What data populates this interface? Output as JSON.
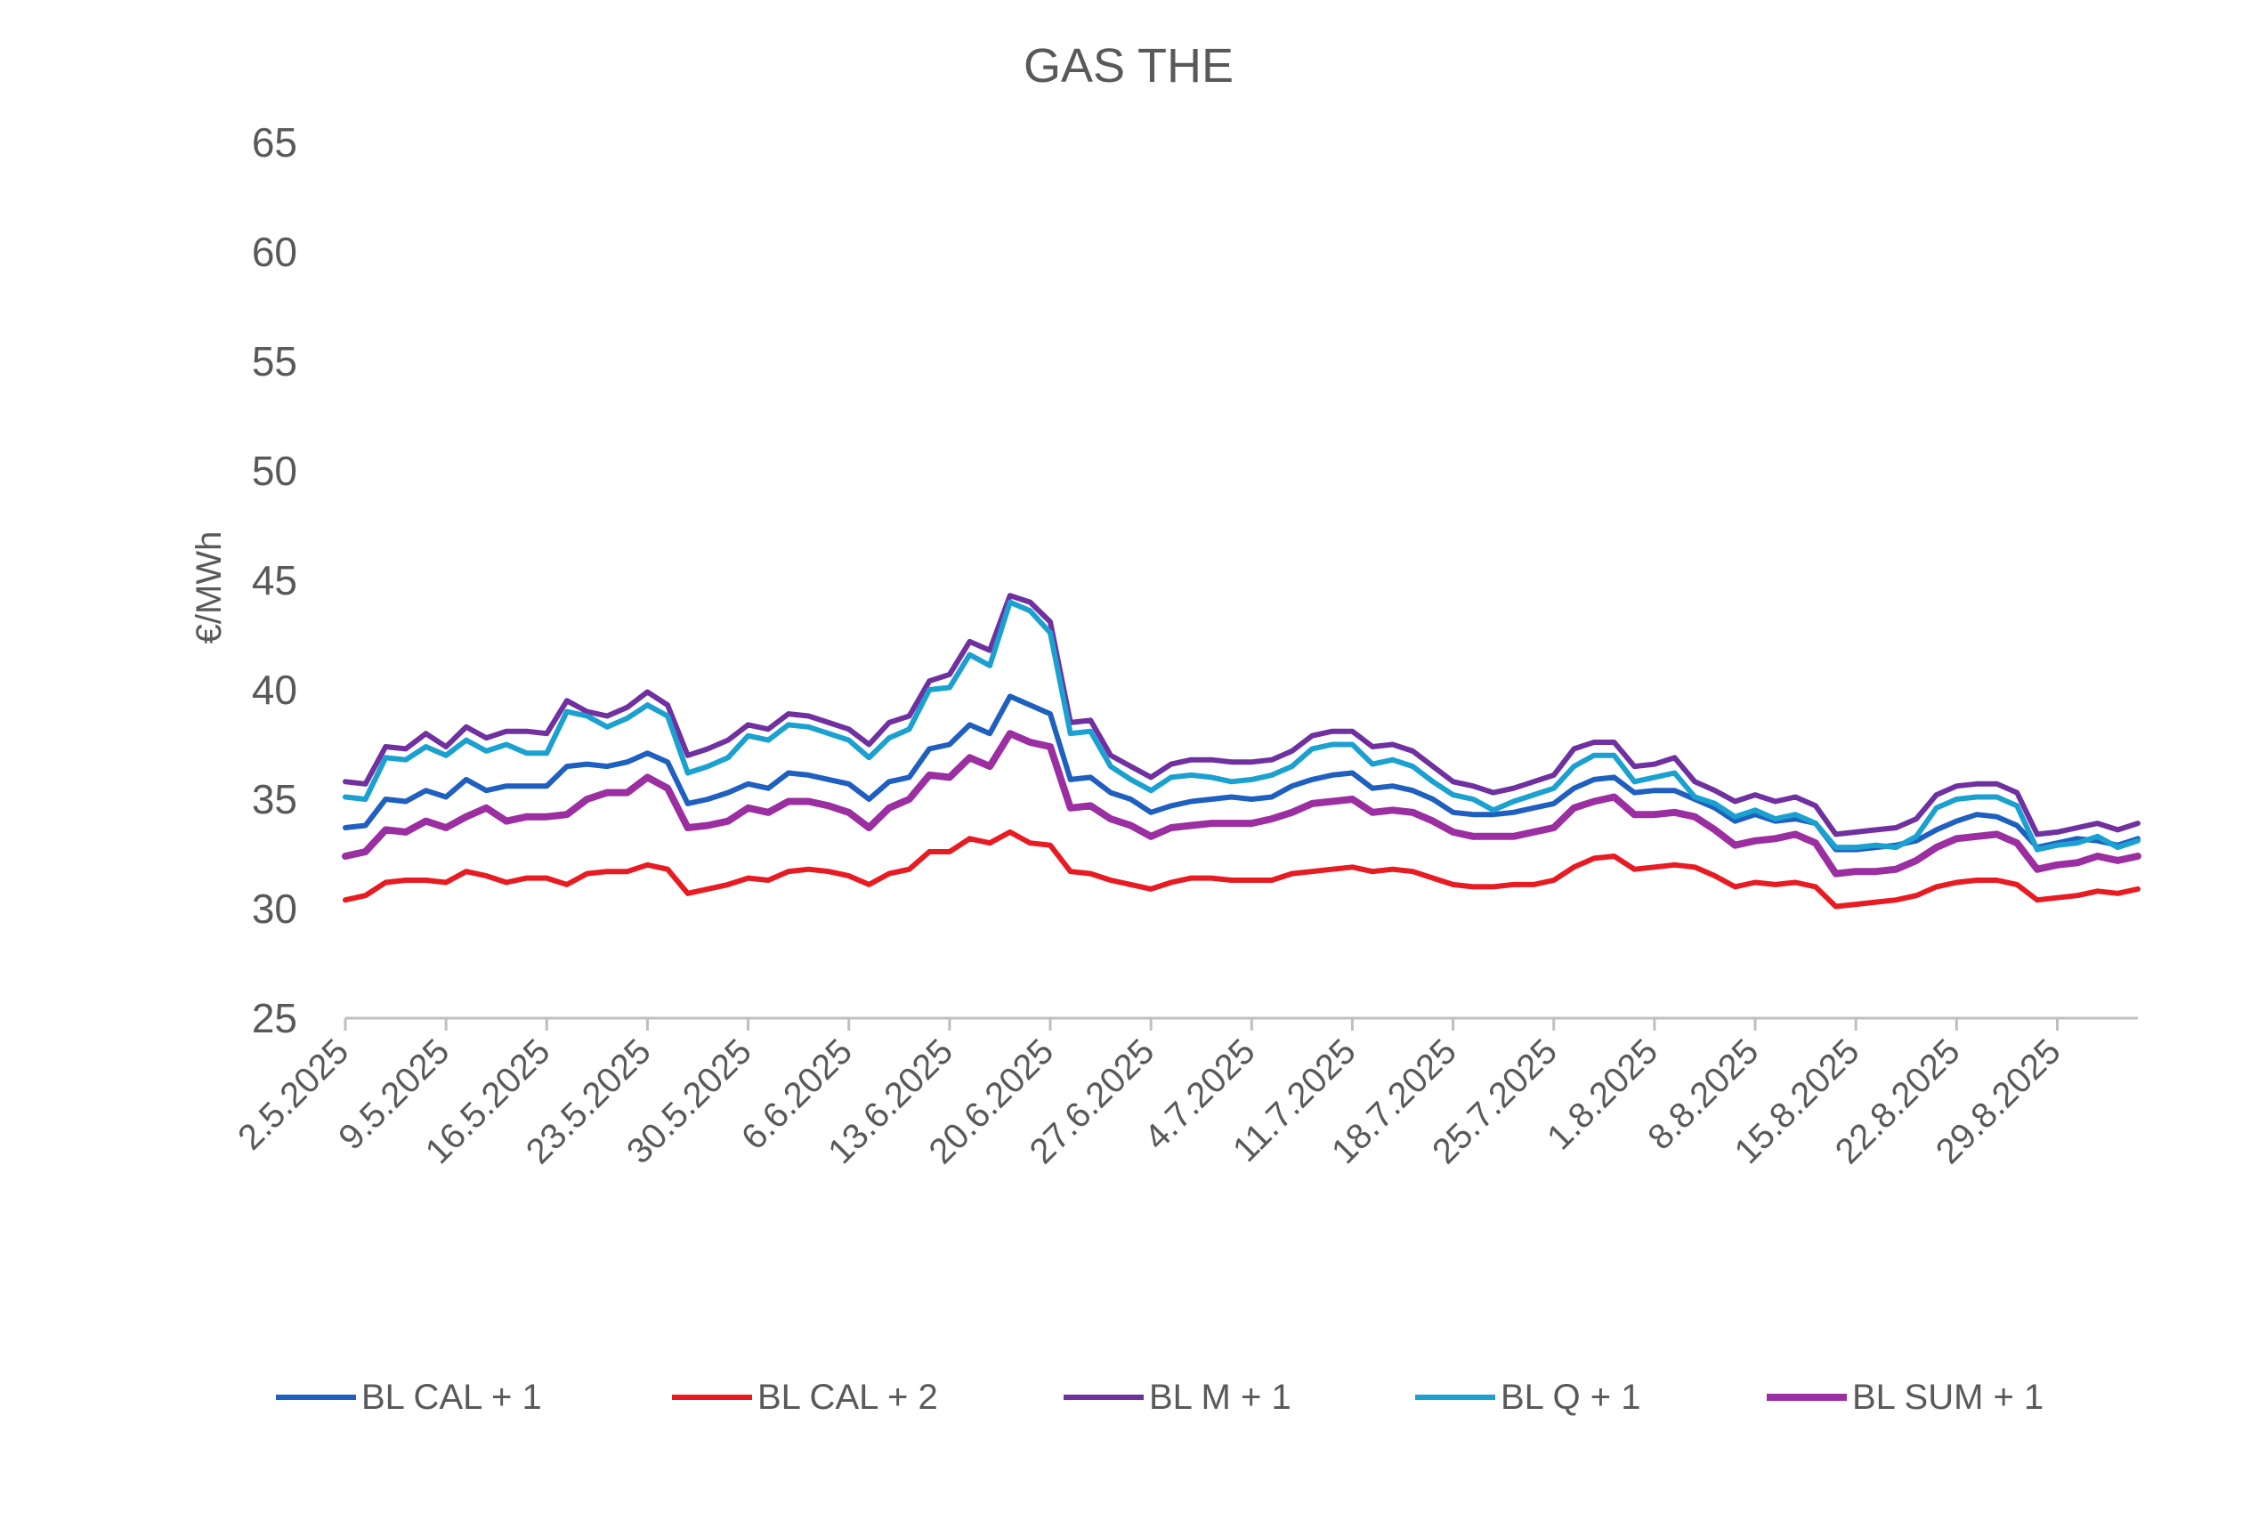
{
  "chart_data": {
    "type": "line",
    "title": "GAS THE",
    "ylabel": "€/MWh",
    "xlabel": "",
    "ylim": [
      25,
      65
    ],
    "yticks": [
      "25",
      "30",
      "35",
      "40",
      "45",
      "50",
      "55",
      "60",
      "65"
    ],
    "grid": false,
    "legend_position": "bottom",
    "x_tick_labels": [
      "2.5.2025",
      "9.5.2025",
      "16.5.2025",
      "23.5.2025",
      "30.5.2025",
      "6.6.2025",
      "13.6.2025",
      "20.6.2025",
      "27.6.2025",
      "4.7.2025",
      "11.7.2025",
      "18.7.2025",
      "25.7.2025",
      "1.8.2025",
      "8.8.2025",
      "15.8.2025",
      "22.8.2025",
      "29.8.2025"
    ],
    "x": [
      "2.5.2025",
      "5.5.2025",
      "6.5.2025",
      "7.5.2025",
      "8.5.2025",
      "9.5.2025",
      "12.5.2025",
      "13.5.2025",
      "14.5.2025",
      "15.5.2025",
      "16.5.2025",
      "19.5.2025",
      "20.5.2025",
      "21.5.2025",
      "22.5.2025",
      "23.5.2025",
      "26.5.2025",
      "27.5.2025",
      "28.5.2025",
      "29.5.2025",
      "30.5.2025",
      "2.6.2025",
      "3.6.2025",
      "4.6.2025",
      "5.6.2025",
      "6.6.2025",
      "9.6.2025",
      "10.6.2025",
      "11.6.2025",
      "12.6.2025",
      "13.6.2025",
      "16.6.2025",
      "17.6.2025",
      "18.6.2025",
      "19.6.2025",
      "20.6.2025",
      "23.6.2025",
      "24.6.2025",
      "25.6.2025",
      "26.6.2025",
      "27.6.2025",
      "30.6.2025",
      "1.7.2025",
      "2.7.2025",
      "3.7.2025",
      "4.7.2025",
      "7.7.2025",
      "8.7.2025",
      "9.7.2025",
      "10.7.2025",
      "11.7.2025",
      "14.7.2025",
      "15.7.2025",
      "16.7.2025",
      "17.7.2025",
      "18.7.2025",
      "21.7.2025",
      "22.7.2025",
      "23.7.2025",
      "24.7.2025",
      "25.7.2025",
      "28.7.2025",
      "29.7.2025",
      "30.7.2025",
      "31.7.2025",
      "1.8.2025",
      "4.8.2025",
      "5.8.2025",
      "6.8.2025",
      "7.8.2025",
      "8.8.2025",
      "11.8.2025",
      "12.8.2025",
      "13.8.2025",
      "14.8.2025",
      "15.8.2025",
      "18.8.2025",
      "19.8.2025",
      "20.8.2025",
      "21.8.2025",
      "22.8.2025",
      "25.8.2025",
      "26.8.2025",
      "27.8.2025",
      "28.8.2025",
      "29.8.2025",
      "1.9.2025",
      "2.9.2025",
      "3.9.2025",
      "4.9.2025"
    ],
    "series": [
      {
        "name": "BL CAL + 1",
        "color": "#1f5fbf",
        "values": [
          33.7,
          33.8,
          35.0,
          34.9,
          35.4,
          35.1,
          35.9,
          35.4,
          35.6,
          35.6,
          35.6,
          36.5,
          36.6,
          36.5,
          36.7,
          37.1,
          36.7,
          34.8,
          35.0,
          35.3,
          35.7,
          35.5,
          36.2,
          36.1,
          35.9,
          35.7,
          35.0,
          35.8,
          36.0,
          37.3,
          37.5,
          38.4,
          38.0,
          39.7,
          39.3,
          38.9,
          35.9,
          36.0,
          35.3,
          35.0,
          34.4,
          34.7,
          34.9,
          35.0,
          35.1,
          35.0,
          35.1,
          35.6,
          35.9,
          36.1,
          36.2,
          35.5,
          35.6,
          35.4,
          35.0,
          34.4,
          34.3,
          34.3,
          34.4,
          34.6,
          34.8,
          35.5,
          35.9,
          36.0,
          35.3,
          35.4,
          35.4,
          35.0,
          34.6,
          34.0,
          34.3,
          34.0,
          34.1,
          33.9,
          32.7,
          32.7,
          32.8,
          32.9,
          33.1,
          33.6,
          34.0,
          34.3,
          34.2,
          33.8,
          32.8,
          33.0,
          33.2,
          33.1,
          32.9,
          33.2
        ]
      },
      {
        "name": "BL CAL + 2",
        "color": "#e81b23",
        "values": [
          30.4,
          30.6,
          31.2,
          31.3,
          31.3,
          31.2,
          31.7,
          31.5,
          31.2,
          31.4,
          31.4,
          31.1,
          31.6,
          31.7,
          31.7,
          32.0,
          31.8,
          30.7,
          30.9,
          31.1,
          31.4,
          31.3,
          31.7,
          31.8,
          31.7,
          31.5,
          31.1,
          31.6,
          31.8,
          32.6,
          32.6,
          33.2,
          33.0,
          33.5,
          33.0,
          32.9,
          31.7,
          31.6,
          31.3,
          31.1,
          30.9,
          31.2,
          31.4,
          31.4,
          31.3,
          31.3,
          31.3,
          31.6,
          31.7,
          31.8,
          31.9,
          31.7,
          31.8,
          31.7,
          31.4,
          31.1,
          31.0,
          31.0,
          31.1,
          31.1,
          31.3,
          31.9,
          32.3,
          32.4,
          31.8,
          31.9,
          32.0,
          31.9,
          31.5,
          31.0,
          31.2,
          31.1,
          31.2,
          31.0,
          30.1,
          30.2,
          30.3,
          30.4,
          30.6,
          31.0,
          31.2,
          31.3,
          31.3,
          31.1,
          30.4,
          30.5,
          30.6,
          30.8,
          30.7,
          30.9
        ]
      },
      {
        "name": "BL M + 1",
        "color": "#7030a0",
        "values": [
          35.8,
          35.7,
          37.4,
          37.3,
          38.0,
          37.4,
          38.3,
          37.8,
          38.1,
          38.1,
          38.0,
          39.5,
          39.0,
          38.8,
          39.2,
          39.9,
          39.3,
          37.0,
          37.3,
          37.7,
          38.4,
          38.2,
          38.9,
          38.8,
          38.5,
          38.2,
          37.5,
          38.5,
          38.8,
          40.4,
          40.7,
          42.2,
          41.8,
          44.3,
          44.0,
          43.1,
          38.5,
          38.6,
          37.0,
          36.5,
          36.0,
          36.6,
          36.8,
          36.8,
          36.7,
          36.7,
          36.8,
          37.2,
          37.9,
          38.1,
          38.1,
          37.4,
          37.5,
          37.2,
          36.5,
          35.8,
          35.6,
          35.3,
          35.5,
          35.8,
          36.1,
          37.3,
          37.6,
          37.6,
          36.5,
          36.6,
          36.9,
          35.8,
          35.4,
          34.9,
          35.2,
          34.9,
          35.1,
          34.7,
          33.4,
          33.5,
          33.6,
          33.7,
          34.1,
          35.2,
          35.6,
          35.7,
          35.7,
          35.3,
          33.4,
          33.5,
          33.7,
          33.9,
          33.6,
          33.9
        ]
      },
      {
        "name": "BL Q + 1",
        "color": "#1ba1d0",
        "values": [
          35.1,
          35.0,
          36.9,
          36.8,
          37.4,
          37.0,
          37.7,
          37.2,
          37.5,
          37.1,
          37.1,
          39.0,
          38.8,
          38.3,
          38.7,
          39.3,
          38.8,
          36.2,
          36.5,
          36.9,
          37.9,
          37.7,
          38.4,
          38.3,
          38.0,
          37.7,
          36.9,
          37.8,
          38.2,
          40.0,
          40.1,
          41.6,
          41.1,
          44.0,
          43.6,
          42.6,
          38.0,
          38.1,
          36.5,
          35.9,
          35.4,
          36.0,
          36.1,
          36.0,
          35.8,
          35.9,
          36.1,
          36.5,
          37.3,
          37.5,
          37.5,
          36.6,
          36.8,
          36.5,
          35.8,
          35.2,
          35.0,
          34.5,
          34.9,
          35.2,
          35.5,
          36.5,
          37.0,
          37.0,
          35.8,
          36.0,
          36.2,
          35.1,
          34.8,
          34.2,
          34.5,
          34.1,
          34.3,
          33.9,
          32.8,
          32.8,
          32.9,
          32.8,
          33.3,
          34.6,
          35.0,
          35.1,
          35.1,
          34.7,
          32.7,
          32.9,
          33.0,
          33.3,
          32.8,
          33.1
        ]
      },
      {
        "name": "BL SUM + 1",
        "color": "#9b2ea0",
        "values": [
          32.4,
          32.6,
          33.6,
          33.5,
          34.0,
          33.7,
          34.2,
          34.6,
          34.0,
          34.2,
          34.2,
          34.3,
          35.0,
          35.3,
          35.3,
          36.0,
          35.5,
          33.7,
          33.8,
          34.0,
          34.6,
          34.4,
          34.9,
          34.9,
          34.7,
          34.4,
          33.7,
          34.6,
          35.0,
          36.1,
          36.0,
          36.9,
          36.5,
          38.0,
          37.6,
          37.4,
          34.6,
          34.7,
          34.1,
          33.8,
          33.3,
          33.7,
          33.8,
          33.9,
          33.9,
          33.9,
          34.1,
          34.4,
          34.8,
          34.9,
          35.0,
          34.4,
          34.5,
          34.4,
          34.0,
          33.5,
          33.3,
          33.3,
          33.3,
          33.5,
          33.7,
          34.6,
          34.9,
          35.1,
          34.3,
          34.3,
          34.4,
          34.2,
          33.6,
          32.9,
          33.1,
          33.2,
          33.4,
          33.0,
          31.6,
          31.7,
          31.7,
          31.8,
          32.2,
          32.8,
          33.2,
          33.3,
          33.4,
          33.0,
          31.8,
          32.0,
          32.1,
          32.4,
          32.2,
          32.4
        ]
      }
    ]
  }
}
